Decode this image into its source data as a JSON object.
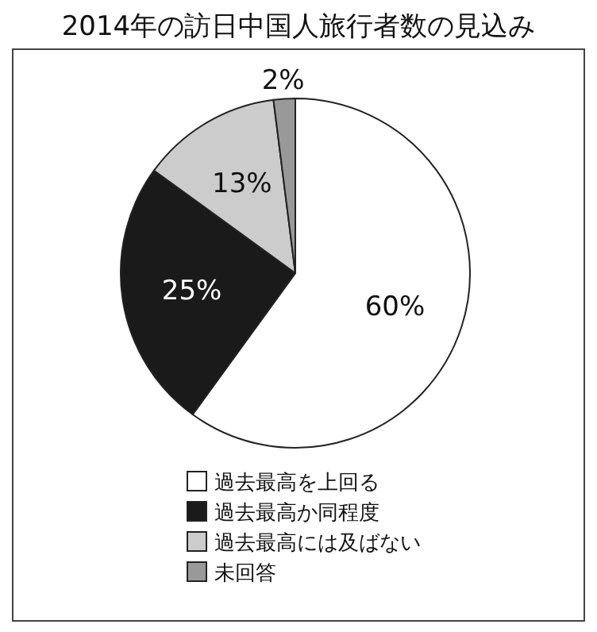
{
  "chart_data": {
    "type": "pie",
    "title": "2014年の訪日中国人旅行者数の見込み",
    "categories": [
      "過去最高を上回る",
      "過去最高か同程度",
      "過去最高には及ばない",
      "未回答"
    ],
    "values": [
      60,
      25,
      13,
      2
    ],
    "colors": [
      "#ffffff",
      "#1a1a1a",
      "#cccccc",
      "#999999"
    ],
    "value_labels": [
      "60%",
      "25%",
      "13%",
      "2%"
    ],
    "legend": "bottom"
  }
}
